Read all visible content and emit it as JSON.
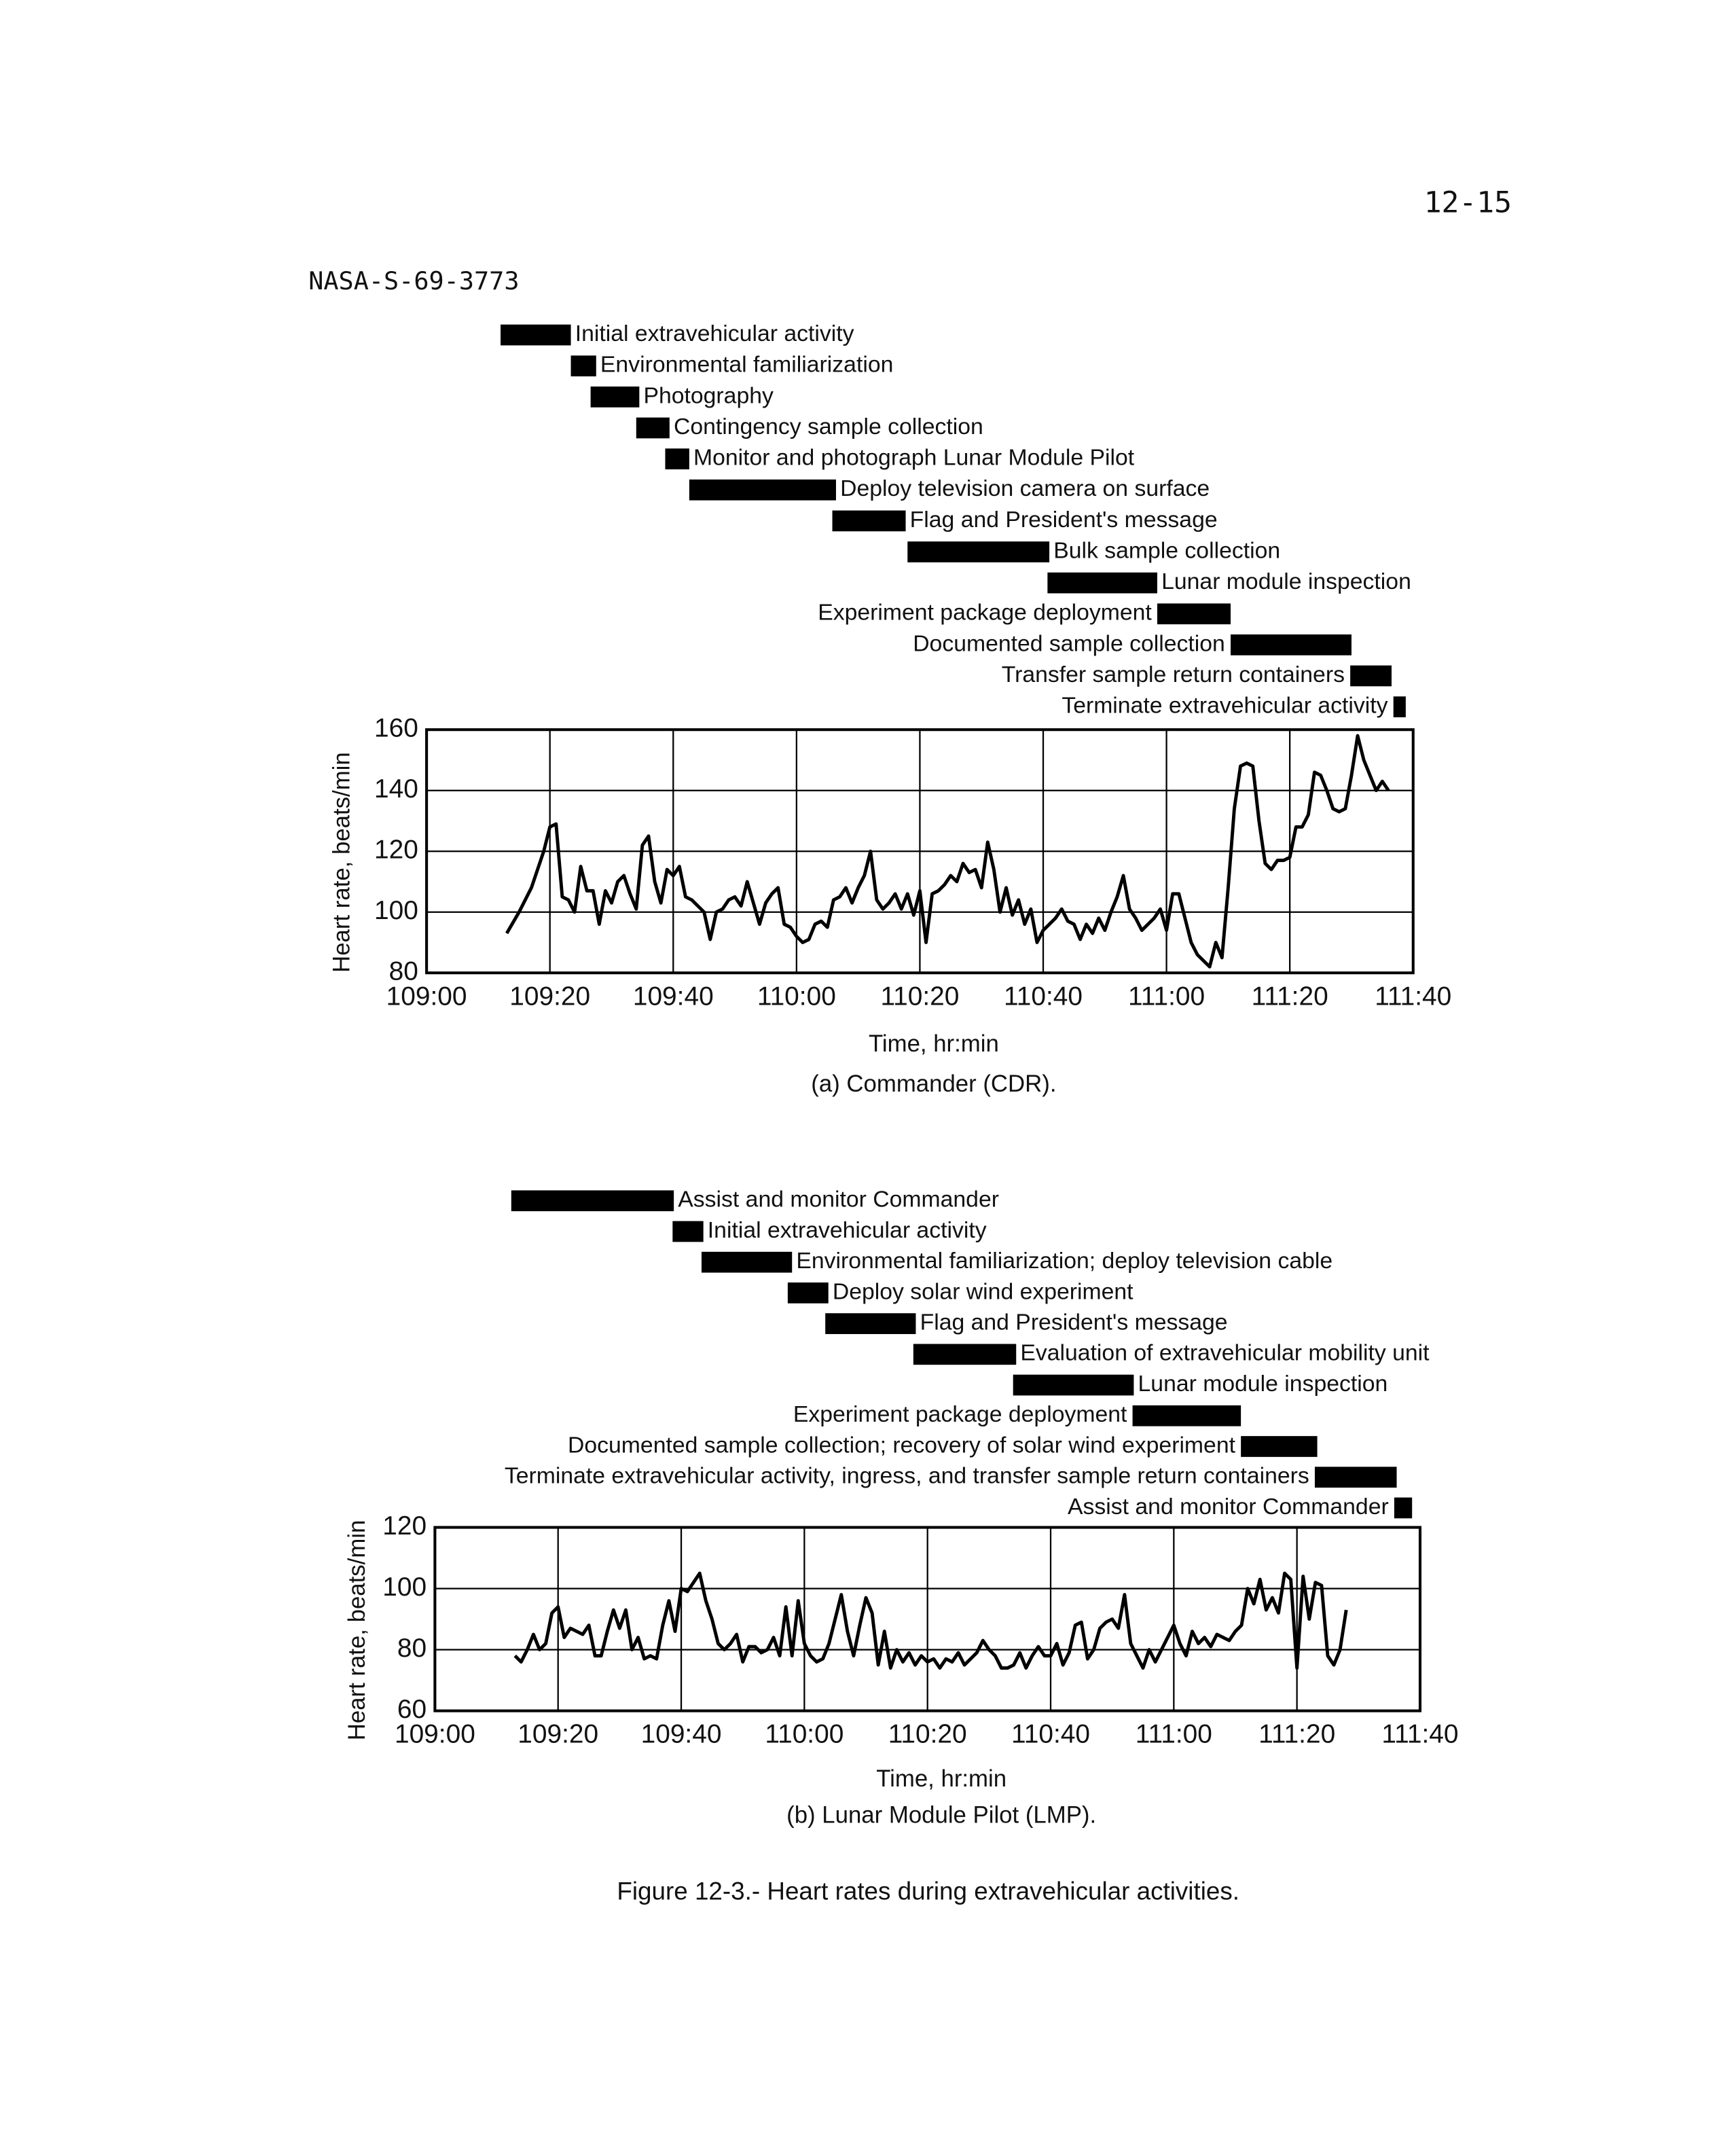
{
  "page_number": "12-15",
  "document_id": "NASA-S-69-3773",
  "figure_caption": "Figure 12-3.- Heart rates during extravehicular activities.",
  "chart_data": [
    {
      "type": "line",
      "caption": "(a) Commander (CDR).",
      "x_label": "Time, hr:min",
      "y_label": "Heart rate, beats/min",
      "color": "#000000",
      "grid": true,
      "xlim": [
        6540,
        6700
      ],
      "xticks": [
        {
          "value": 6540,
          "label": "109:00"
        },
        {
          "value": 6560,
          "label": "109:20"
        },
        {
          "value": 6580,
          "label": "109:40"
        },
        {
          "value": 6600,
          "label": "110:00"
        },
        {
          "value": 6620,
          "label": "110:20"
        },
        {
          "value": 6640,
          "label": "110:40"
        },
        {
          "value": 6660,
          "label": "111:00"
        },
        {
          "value": 6680,
          "label": "111:20"
        },
        {
          "value": 6700,
          "label": "111:40"
        }
      ],
      "ylim": [
        80,
        160
      ],
      "yticks": [
        80,
        100,
        120,
        140,
        160
      ],
      "activities": [
        {
          "label": "Initial extravehicular activity",
          "start": 6552,
          "end": 6563.4,
          "label_side": "right"
        },
        {
          "label": "Environmental familiarization",
          "start": 6563.4,
          "end": 6567.5,
          "label_side": "right"
        },
        {
          "label": "Photography",
          "start": 6566.6,
          "end": 6574.5,
          "label_side": "right"
        },
        {
          "label": "Contingency sample collection",
          "start": 6574,
          "end": 6579.4,
          "label_side": "right"
        },
        {
          "label": "Monitor and photograph Lunar Module Pilot",
          "start": 6578.7,
          "end": 6582.6,
          "label_side": "right"
        },
        {
          "label": "Deploy television camera on surface",
          "start": 6582.6,
          "end": 6606.4,
          "label_side": "right"
        },
        {
          "label": "Flag and President's message",
          "start": 6605.8,
          "end": 6617.7,
          "label_side": "right"
        },
        {
          "label": "Bulk sample collection",
          "start": 6618,
          "end": 6641,
          "label_side": "right"
        },
        {
          "label": "Lunar module inspection",
          "start": 6640.7,
          "end": 6658.5,
          "label_side": "right"
        },
        {
          "label": "Experiment package deployment",
          "start": 6658.5,
          "end": 6670.4,
          "label_side": "left"
        },
        {
          "label": "Documented sample collection",
          "start": 6670.4,
          "end": 6690,
          "label_side": "left"
        },
        {
          "label": "Transfer sample return containers",
          "start": 6689.8,
          "end": 6696.5,
          "label_side": "left"
        },
        {
          "label": "Terminate extravehicular activity",
          "start": 6696.8,
          "end": 6698.8,
          "label_side": "left"
        }
      ],
      "x": [
        6553,
        6555,
        6557,
        6559,
        6560,
        6561,
        6562,
        6563,
        6564,
        6565,
        6566,
        6567,
        6568,
        6569,
        6570,
        6571,
        6572,
        6573,
        6574,
        6575,
        6576,
        6577,
        6578,
        6579,
        6580,
        6581,
        6582,
        6583,
        6584,
        6585,
        6586,
        6587,
        6588,
        6589,
        6590,
        6591,
        6592,
        6593,
        6594,
        6595,
        6596,
        6597,
        6598,
        6599,
        6600,
        6601,
        6602,
        6603,
        6604,
        6605,
        6606,
        6607,
        6608,
        6609,
        6610,
        6611,
        6612,
        6613,
        6614,
        6615,
        6616,
        6617,
        6618,
        6619,
        6620,
        6621,
        6622,
        6623,
        6624,
        6625,
        6626,
        6627,
        6628,
        6629,
        6630,
        6631,
        6632,
        6633,
        6634,
        6635,
        6636,
        6637,
        6638,
        6639,
        6640,
        6642,
        6643,
        6644,
        6645,
        6646,
        6647,
        6648,
        6649,
        6650,
        6651,
        6652,
        6653,
        6654,
        6655,
        6656,
        6657,
        6658,
        6659,
        6660,
        6661,
        6662,
        6663,
        6664,
        6665,
        6666,
        6667,
        6668,
        6669,
        6670,
        6671,
        6672,
        6673,
        6674,
        6675,
        6676,
        6677,
        6678,
        6679,
        6680,
        6681,
        6682,
        6683,
        6684,
        6685,
        6686,
        6687,
        6688,
        6689,
        6690,
        6691,
        6692,
        6693,
        6694,
        6695,
        6696
      ],
      "values": [
        93,
        100,
        108,
        120,
        128,
        129,
        105,
        104,
        100,
        115,
        107,
        107,
        96,
        107,
        103,
        110,
        112,
        106,
        101,
        122,
        125,
        110,
        103,
        114,
        112,
        115,
        105,
        104,
        102,
        100,
        91,
        100,
        101,
        104,
        105,
        102,
        110,
        103,
        96,
        103,
        106,
        108,
        96,
        95,
        92,
        90,
        91,
        96,
        97,
        95,
        104,
        105,
        108,
        103,
        108,
        112,
        120,
        104,
        101,
        103,
        106,
        101,
        106,
        99,
        107,
        90,
        106,
        107,
        109,
        112,
        110,
        116,
        113,
        114,
        108,
        123,
        114,
        100,
        108,
        99,
        104,
        96,
        101,
        90,
        94,
        98,
        101,
        97,
        96,
        91,
        96,
        93,
        98,
        94,
        100,
        105,
        112,
        101,
        98,
        94,
        96,
        98,
        101,
        94,
        106,
        106,
        98,
        90,
        86,
        84,
        82,
        90,
        85,
        108,
        134,
        148,
        149,
        148,
        130,
        116,
        114,
        117,
        117,
        118,
        128,
        128,
        132,
        146,
        145,
        140,
        134,
        133,
        134,
        145,
        158,
        150,
        145,
        140,
        143,
        140
      ]
    },
    {
      "type": "line",
      "caption": "(b) Lunar Module Pilot (LMP).",
      "x_label": "Time, hr:min",
      "y_label": "Heart rate, beats/min",
      "color": "#000000",
      "grid": true,
      "xlim": [
        6540,
        6700
      ],
      "xticks": [
        {
          "value": 6540,
          "label": "109:00"
        },
        {
          "value": 6560,
          "label": "109:20"
        },
        {
          "value": 6580,
          "label": "109:40"
        },
        {
          "value": 6600,
          "label": "110:00"
        },
        {
          "value": 6620,
          "label": "110:20"
        },
        {
          "value": 6640,
          "label": "110:40"
        },
        {
          "value": 6660,
          "label": "111:00"
        },
        {
          "value": 6680,
          "label": "111:20"
        },
        {
          "value": 6700,
          "label": "111:40"
        }
      ],
      "ylim": [
        60,
        120
      ],
      "yticks": [
        60,
        80,
        100,
        120
      ],
      "activities": [
        {
          "label": "Assist and monitor Commander",
          "start": 6552.4,
          "end": 6578.8,
          "label_side": "right"
        },
        {
          "label": "Initial extravehicular activity",
          "start": 6578.6,
          "end": 6583.6,
          "label_side": "right"
        },
        {
          "label": "Environmental familiarization; deploy television cable",
          "start": 6583.3,
          "end": 6598,
          "label_side": "right"
        },
        {
          "label": "Deploy solar wind experiment",
          "start": 6597.3,
          "end": 6603.9,
          "label_side": "right"
        },
        {
          "label": "Flag and President's message",
          "start": 6603.4,
          "end": 6618.1,
          "label_side": "right"
        },
        {
          "label": "Evaluation of extravehicular mobility unit",
          "start": 6617.7,
          "end": 6634.4,
          "label_side": "right"
        },
        {
          "label": "Lunar module inspection",
          "start": 6633.9,
          "end": 6653.5,
          "label_side": "right"
        },
        {
          "label": "Experiment package deployment",
          "start": 6653.3,
          "end": 6670.9,
          "label_side": "left"
        },
        {
          "label": "Documented sample collection; recovery of solar wind experiment",
          "start": 6670.9,
          "end": 6683.3,
          "label_side": "left"
        },
        {
          "label": "Terminate extravehicular activity, ingress, and transfer sample return containers",
          "start": 6682.9,
          "end": 6696.2,
          "label_side": "left"
        },
        {
          "label": "Assist and monitor Commander",
          "start": 6695.8,
          "end": 6698.7,
          "label_side": "left"
        }
      ],
      "x": [
        6553,
        6554,
        6555,
        6556,
        6557,
        6558,
        6559,
        6560,
        6561,
        6562,
        6563,
        6564,
        6565,
        6566,
        6567,
        6568,
        6569,
        6570,
        6571,
        6572,
        6573,
        6574,
        6575,
        6576,
        6577,
        6578,
        6579,
        6580,
        6581,
        6582,
        6583,
        6584,
        6585,
        6586,
        6587,
        6588,
        6589,
        6590,
        6591,
        6592,
        6593,
        6594,
        6595,
        6596,
        6597,
        6598,
        6599,
        6600,
        6601,
        6602,
        6603,
        6604,
        6605,
        6606,
        6607,
        6608,
        6609,
        6610,
        6611,
        6612,
        6613,
        6614,
        6615,
        6616,
        6617,
        6618,
        6619,
        6620,
        6621,
        6622,
        6623,
        6624,
        6625,
        6626,
        6627,
        6628,
        6629,
        6630,
        6631,
        6632,
        6633,
        6634,
        6635,
        6636,
        6637,
        6638,
        6639,
        6640,
        6641,
        6642,
        6643,
        6644,
        6645,
        6646,
        6647,
        6648,
        6649,
        6650,
        6651,
        6652,
        6653,
        6654,
        6655,
        6656,
        6657,
        6658,
        6659,
        6660,
        6661,
        6662,
        6663,
        6664,
        6665,
        6666,
        6667,
        6668,
        6669,
        6670,
        6671,
        6672,
        6673,
        6674,
        6675,
        6676,
        6677,
        6678,
        6679,
        6680,
        6681,
        6682,
        6683,
        6684,
        6685,
        6686,
        6687,
        6688
      ],
      "values": [
        78,
        76,
        80,
        85,
        80,
        82,
        92,
        94,
        84,
        87,
        86,
        85,
        88,
        78,
        78,
        86,
        93,
        87,
        93,
        80,
        84,
        77,
        78,
        77,
        88,
        96,
        86,
        100,
        99,
        102,
        105,
        96,
        90,
        82,
        80,
        82,
        85,
        76,
        81,
        81,
        79,
        80,
        84,
        78,
        94,
        78,
        96,
        82,
        78,
        76,
        77,
        82,
        90,
        98,
        86,
        78,
        88,
        97,
        92,
        75,
        86,
        74,
        80,
        76,
        79,
        75,
        78,
        76,
        77,
        74,
        77,
        76,
        79,
        75,
        77,
        79,
        83,
        80,
        78,
        74,
        74,
        75,
        79,
        74,
        78,
        81,
        78,
        78,
        82,
        75,
        79,
        88,
        89,
        77,
        80,
        87,
        89,
        90,
        87,
        98,
        82,
        78,
        74,
        80,
        76,
        80,
        84,
        88,
        82,
        78,
        86,
        82,
        84,
        81,
        85,
        84,
        83,
        86,
        88,
        100,
        95,
        103,
        93,
        97,
        92,
        105,
        103,
        74,
        104,
        90,
        102,
        101,
        78,
        75,
        80,
        93
      ]
    }
  ]
}
